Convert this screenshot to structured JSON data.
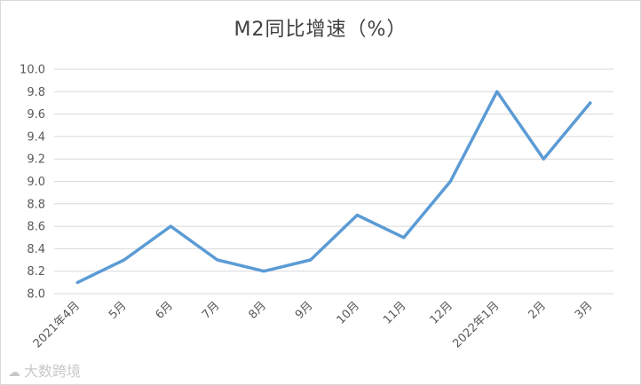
{
  "chart_data": {
    "type": "line",
    "title": "M2同比增速（%）",
    "categories": [
      "2021年4月",
      "5月",
      "6月",
      "7月",
      "8月",
      "9月",
      "10月",
      "11月",
      "12月",
      "2022年1月",
      "2月",
      "3月"
    ],
    "series": [
      {
        "values": [
          8.1,
          8.3,
          8.6,
          8.3,
          8.2,
          8.3,
          8.7,
          8.5,
          9.0,
          9.8,
          9.2,
          9.7
        ]
      }
    ],
    "ylim": [
      8.0,
      10.0
    ],
    "yticks": [
      "8.0",
      "8.2",
      "8.4",
      "8.6",
      "8.8",
      "9.0",
      "9.2",
      "9.4",
      "9.6",
      "9.8",
      "10.0"
    ],
    "grid": true,
    "line_color": "#5b9bd5",
    "grid_color": "#d9d9d9"
  },
  "watermark": {
    "icon": "cloud-logo-icon",
    "text": "大数跨境"
  }
}
